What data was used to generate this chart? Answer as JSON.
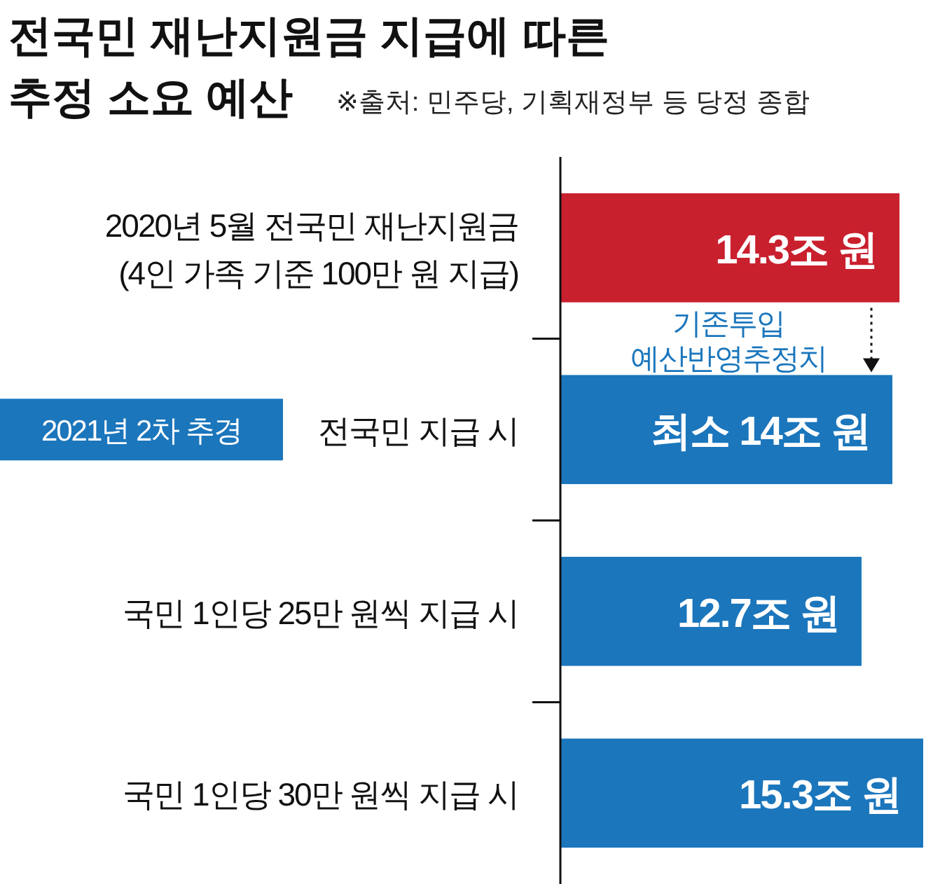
{
  "chart_data": {
    "type": "bar",
    "orientation": "horizontal",
    "title": "전국민 재난지원금 지급에 따른\n추정 소요 예산",
    "categories": [
      "2020년 5월 전국민 재난지원금\n(4인 가족 기준 100만 원 지급)",
      "전국민 지급 시",
      "국민 1인당 25만 원씩 지급 시",
      "국민 1인당 30만 원씩 지급 시"
    ],
    "values": [
      14.3,
      14,
      12.7,
      15.3
    ],
    "colors": [
      "#c9202e",
      "#1b76bc",
      "#1b76bc",
      "#1b76bc"
    ],
    "value_labels": [
      "14.3조 원",
      "최소 14조 원",
      "12.7조 원",
      "15.3조 원"
    ],
    "annotations": [
      "※출처: 민주당, 기획재정부 등 당정 종합",
      "2021년 2차 추경",
      "기존투입\n예산반영추정치"
    ]
  }
}
